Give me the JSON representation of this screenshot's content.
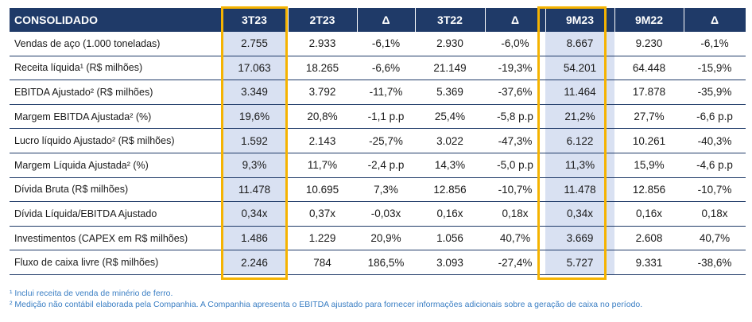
{
  "table": {
    "headers": [
      "CONSOLIDADO",
      "3T23",
      "2T23",
      "Δ",
      "3T22",
      "Δ",
      "9M23",
      "9M22",
      "Δ"
    ],
    "rows": [
      [
        "Vendas de aço (1.000 toneladas)",
        "2.755",
        "2.933",
        "-6,1%",
        "2.930",
        "-6,0%",
        "8.667",
        "9.230",
        "-6,1%"
      ],
      [
        "Receita líquida¹ (R$ milhões)",
        "17.063",
        "18.265",
        "-6,6%",
        "21.149",
        "-19,3%",
        "54.201",
        "64.448",
        "-15,9%"
      ],
      [
        "EBITDA Ajustado² (R$ milhões)",
        "3.349",
        "3.792",
        "-11,7%",
        "5.369",
        "-37,6%",
        "11.464",
        "17.878",
        "-35,9%"
      ],
      [
        "Margem EBITDA Ajustada² (%)",
        "19,6%",
        "20,8%",
        "-1,1 p.p",
        "25,4%",
        "-5,8 p.p",
        "21,2%",
        "27,7%",
        "-6,6 p.p"
      ],
      [
        "Lucro líquido Ajustado² (R$ milhões)",
        "1.592",
        "2.143",
        "-25,7%",
        "3.022",
        "-47,3%",
        "6.122",
        "10.261",
        "-40,3%"
      ],
      [
        "Margem Líquida Ajustada² (%)",
        "9,3%",
        "11,7%",
        "-2,4 p.p",
        "14,3%",
        "-5,0 p.p",
        "11,3%",
        "15,9%",
        "-4,6 p.p"
      ],
      [
        "Dívida Bruta (R$ milhões)",
        "11.478",
        "10.695",
        "7,3%",
        "12.856",
        "-10,7%",
        "11.478",
        "12.856",
        "-10,7%"
      ],
      [
        "Dívida Líquida/EBITDA Ajustado",
        "0,34x",
        "0,37x",
        "-0,03x",
        "0,16x",
        "0,18x",
        "0,34x",
        "0,16x",
        "0,18x"
      ],
      [
        "Investimentos (CAPEX em R$ milhões)",
        "1.486",
        "1.229",
        "20,9%",
        "1.056",
        "40,7%",
        "3.669",
        "2.608",
        "40,7%"
      ],
      [
        "Fluxo de caixa livre (R$ milhões)",
        "2.246",
        "784",
        "186,5%",
        "3.093",
        "-27,4%",
        "5.727",
        "9.331",
        "-38,6%"
      ]
    ]
  },
  "footnotes": [
    "¹ Inclui receita de venda de minério de ferro.",
    "² Medição não contábil elaborada pela Companhia. A Companhia apresenta o EBITDA ajustado para fornecer informações adicionais sobre a geração de caixa no período."
  ],
  "colors": {
    "header_bg": "#1f3a68",
    "highlight_bg": "#d9e1f2",
    "frame": "#f5b301",
    "footnote": "#3b7fc4"
  }
}
